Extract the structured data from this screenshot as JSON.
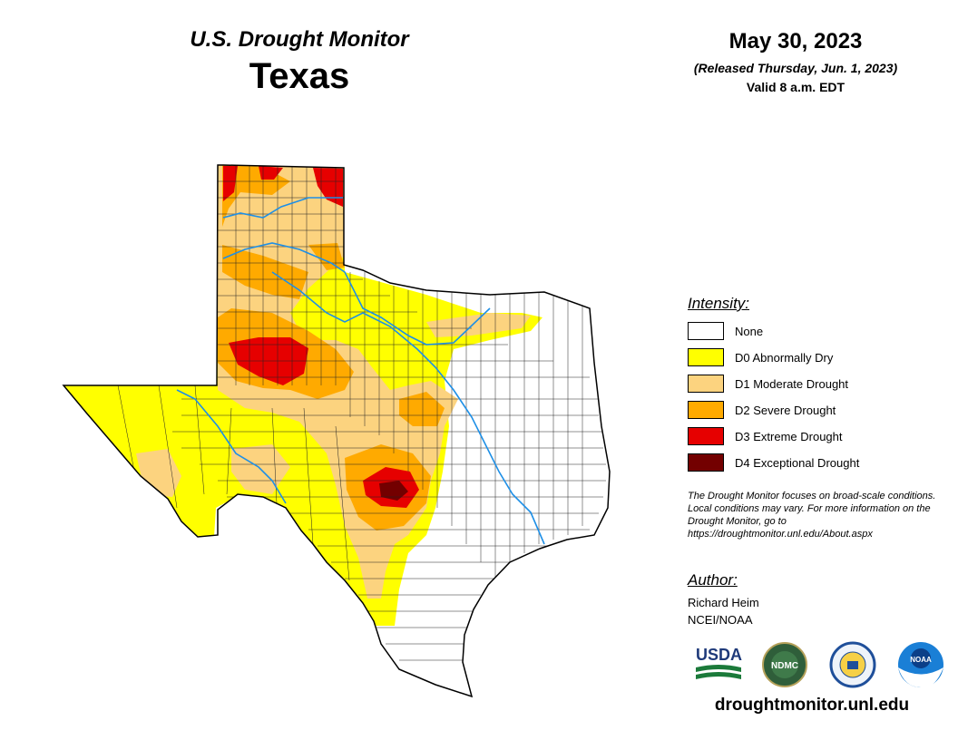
{
  "header": {
    "title": "U.S. Drought Monitor",
    "state": "Texas"
  },
  "map_info": {
    "date": "May 30, 2023",
    "released": "(Released Thursday, Jun. 1, 2023)",
    "valid": "Valid 8 a.m. EDT"
  },
  "legend": {
    "title": "Intensity:",
    "items": [
      {
        "label": "None",
        "color": "#ffffff"
      },
      {
        "label": "D0 Abnormally Dry",
        "color": "#ffff00"
      },
      {
        "label": "D1 Moderate Drought",
        "color": "#fcd37f"
      },
      {
        "label": "D2 Severe Drought",
        "color": "#ffaa00"
      },
      {
        "label": "D3 Extreme Drought",
        "color": "#e60000"
      },
      {
        "label": "D4 Exceptional Drought",
        "color": "#730000"
      }
    ]
  },
  "note": "The Drought Monitor focuses on broad-scale conditions. Local conditions may vary. For more information on the Drought Monitor, go to https://droughtmonitor.unl.edu/About.aspx",
  "author": {
    "title": "Author:",
    "name": "Richard Heim",
    "org": "NCEI/NOAA"
  },
  "logos": {
    "usda": "USDA",
    "ndmc": "NDMC",
    "noaa": "NOAA"
  },
  "site_url": "droughtmonitor.unl.edu",
  "colors": {
    "river": "#1e8fe6",
    "county_line": "#222222"
  }
}
